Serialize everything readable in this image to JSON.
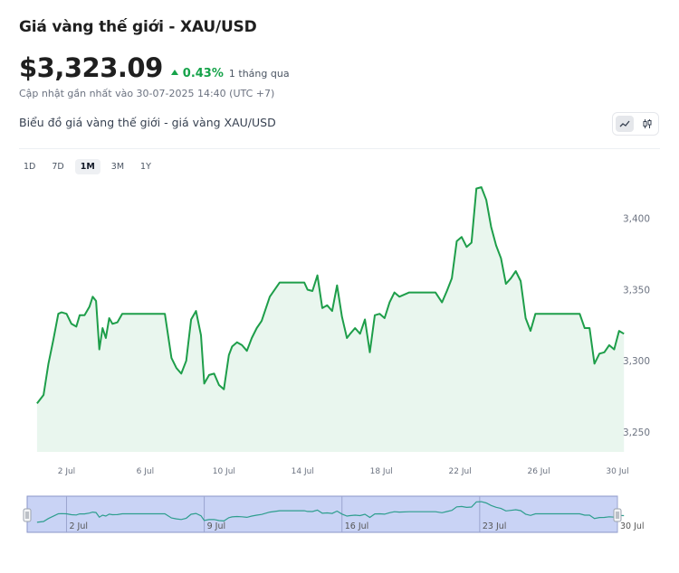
{
  "header": {
    "title": "Giá vàng thế giới - XAU/USD",
    "price": "$3,323.09",
    "change": "0.43%",
    "period": "1 tháng qua",
    "updated": "Cập nhật gần nhất vào 30-07-2025 14:40 (UTC +7)",
    "subtitle": "Biểu đồ giá vàng thế giới - giá vàng XAU/USD"
  },
  "toolbar": {
    "chart_types": [
      {
        "icon": "line-chart-icon",
        "active": true
      },
      {
        "icon": "candlestick-icon",
        "active": false
      }
    ]
  },
  "range_tabs": [
    {
      "label": "1D",
      "active": false
    },
    {
      "label": "7D",
      "active": false
    },
    {
      "label": "1M",
      "active": true
    },
    {
      "label": "3M",
      "active": false
    },
    {
      "label": "1Y",
      "active": false
    }
  ],
  "colors": {
    "accent": "#16a34a",
    "line": "#1e9e4a",
    "area": "#e9f6ee",
    "navigator_fill": "#c9d3f5",
    "navigator_line": "#2e9e8e"
  },
  "chart_data": {
    "type": "area",
    "title": "",
    "xlabel": "",
    "ylabel": "",
    "xlim": [
      "2025-06-30",
      "2025-07-30"
    ],
    "ylim": [
      3236,
      3436
    ],
    "x_tick_labels": [
      "2 Jul",
      "6 Jul",
      "10 Jul",
      "14 Jul",
      "18 Jul",
      "22 Jul",
      "26 Jul",
      "30 Jul"
    ],
    "y_tick_labels": [
      "3,250",
      "3,300",
      "3,350",
      "3,400"
    ],
    "navigator_tick_labels": [
      "2 Jul",
      "9 Jul",
      "16 Jul",
      "23 Jul",
      "30 Jul"
    ],
    "series": [
      {
        "x": [
          "2025-06-30 12:00",
          "2025-06-30 20:00",
          "2025-07-01 02:00",
          "2025-07-01 08:00",
          "2025-07-01 14:00",
          "2025-07-01 18:00",
          "2025-07-02 00:00",
          "2025-07-02 06:00",
          "2025-07-02 12:00",
          "2025-07-02 16:00",
          "2025-07-02 22:00",
          "2025-07-03 04:00",
          "2025-07-03 08:00",
          "2025-07-03 12:00",
          "2025-07-03 16:00",
          "2025-07-03 20:00",
          "2025-07-04 00:00",
          "2025-07-04 04:00",
          "2025-07-04 08:00",
          "2025-07-04 14:00",
          "2025-07-04 20:00",
          "2025-07-05 04:00",
          "2025-07-05 20:00",
          "2025-07-06 12:00",
          "2025-07-07 00:00",
          "2025-07-07 08:00",
          "2025-07-07 14:00",
          "2025-07-07 20:00",
          "2025-07-08 02:00",
          "2025-07-08 08:00",
          "2025-07-08 14:00",
          "2025-07-08 20:00",
          "2025-07-09 00:00",
          "2025-07-09 06:00",
          "2025-07-09 12:00",
          "2025-07-09 18:00",
          "2025-07-10 00:00",
          "2025-07-10 06:00",
          "2025-07-10 10:00",
          "2025-07-10 16:00",
          "2025-07-10 22:00",
          "2025-07-11 04:00",
          "2025-07-11 10:00",
          "2025-07-11 16:00",
          "2025-07-11 22:00",
          "2025-07-12 08:00",
          "2025-07-12 20:00",
          "2025-07-13 12:00",
          "2025-07-14 02:00",
          "2025-07-14 06:00",
          "2025-07-14 12:00",
          "2025-07-14 18:00",
          "2025-07-15 00:00",
          "2025-07-15 06:00",
          "2025-07-15 12:00",
          "2025-07-15 18:00",
          "2025-07-16 00:00",
          "2025-07-16 06:00",
          "2025-07-16 10:00",
          "2025-07-16 16:00",
          "2025-07-16 22:00",
          "2025-07-17 04:00",
          "2025-07-17 10:00",
          "2025-07-17 16:00",
          "2025-07-17 22:00",
          "2025-07-18 04:00",
          "2025-07-18 10:00",
          "2025-07-18 16:00",
          "2025-07-18 22:00",
          "2025-07-19 10:00",
          "2025-07-20 00:00",
          "2025-07-20 18:00",
          "2025-07-21 02:00",
          "2025-07-21 08:00",
          "2025-07-21 14:00",
          "2025-07-21 20:00",
          "2025-07-22 02:00",
          "2025-07-22 08:00",
          "2025-07-22 14:00",
          "2025-07-22 20:00",
          "2025-07-23 02:00",
          "2025-07-23 08:00",
          "2025-07-23 14:00",
          "2025-07-23 20:00",
          "2025-07-24 02:00",
          "2025-07-24 08:00",
          "2025-07-24 14:00",
          "2025-07-24 20:00",
          "2025-07-25 02:00",
          "2025-07-25 08:00",
          "2025-07-25 14:00",
          "2025-07-25 20:00",
          "2025-07-26 12:00",
          "2025-07-27 12:00",
          "2025-07-28 02:00",
          "2025-07-28 08:00",
          "2025-07-28 14:00",
          "2025-07-28 20:00",
          "2025-07-29 02:00",
          "2025-07-29 08:00",
          "2025-07-29 14:00",
          "2025-07-29 20:00",
          "2025-07-30 02:00",
          "2025-07-30 08:00"
        ],
        "y": [
          3270,
          3276,
          3298,
          3315,
          3333,
          3334,
          3333,
          3326,
          3324,
          3332,
          3332,
          3338,
          3345,
          3342,
          3308,
          3323,
          3316,
          3330,
          3326,
          3327,
          3333,
          3333,
          3333,
          3333,
          3333,
          3302,
          3295,
          3291,
          3300,
          3329,
          3335,
          3318,
          3284,
          3290,
          3291,
          3283,
          3280,
          3304,
          3310,
          3313,
          3311,
          3307,
          3316,
          3323,
          3328,
          3345,
          3355,
          3355,
          3355,
          3350,
          3349,
          3360,
          3337,
          3339,
          3335,
          3353,
          3331,
          3316,
          3319,
          3323,
          3319,
          3329,
          3306,
          3332,
          3333,
          3330,
          3341,
          3348,
          3345,
          3348,
          3348,
          3348,
          3341,
          3349,
          3358,
          3384,
          3387,
          3380,
          3383,
          3421,
          3422,
          3413,
          3394,
          3381,
          3372,
          3354,
          3358,
          3363,
          3356,
          3330,
          3321,
          3333,
          3333,
          3333,
          3333,
          3323,
          3323,
          3298,
          3305,
          3306,
          3311,
          3308,
          3321,
          3319
        ]
      }
    ]
  }
}
